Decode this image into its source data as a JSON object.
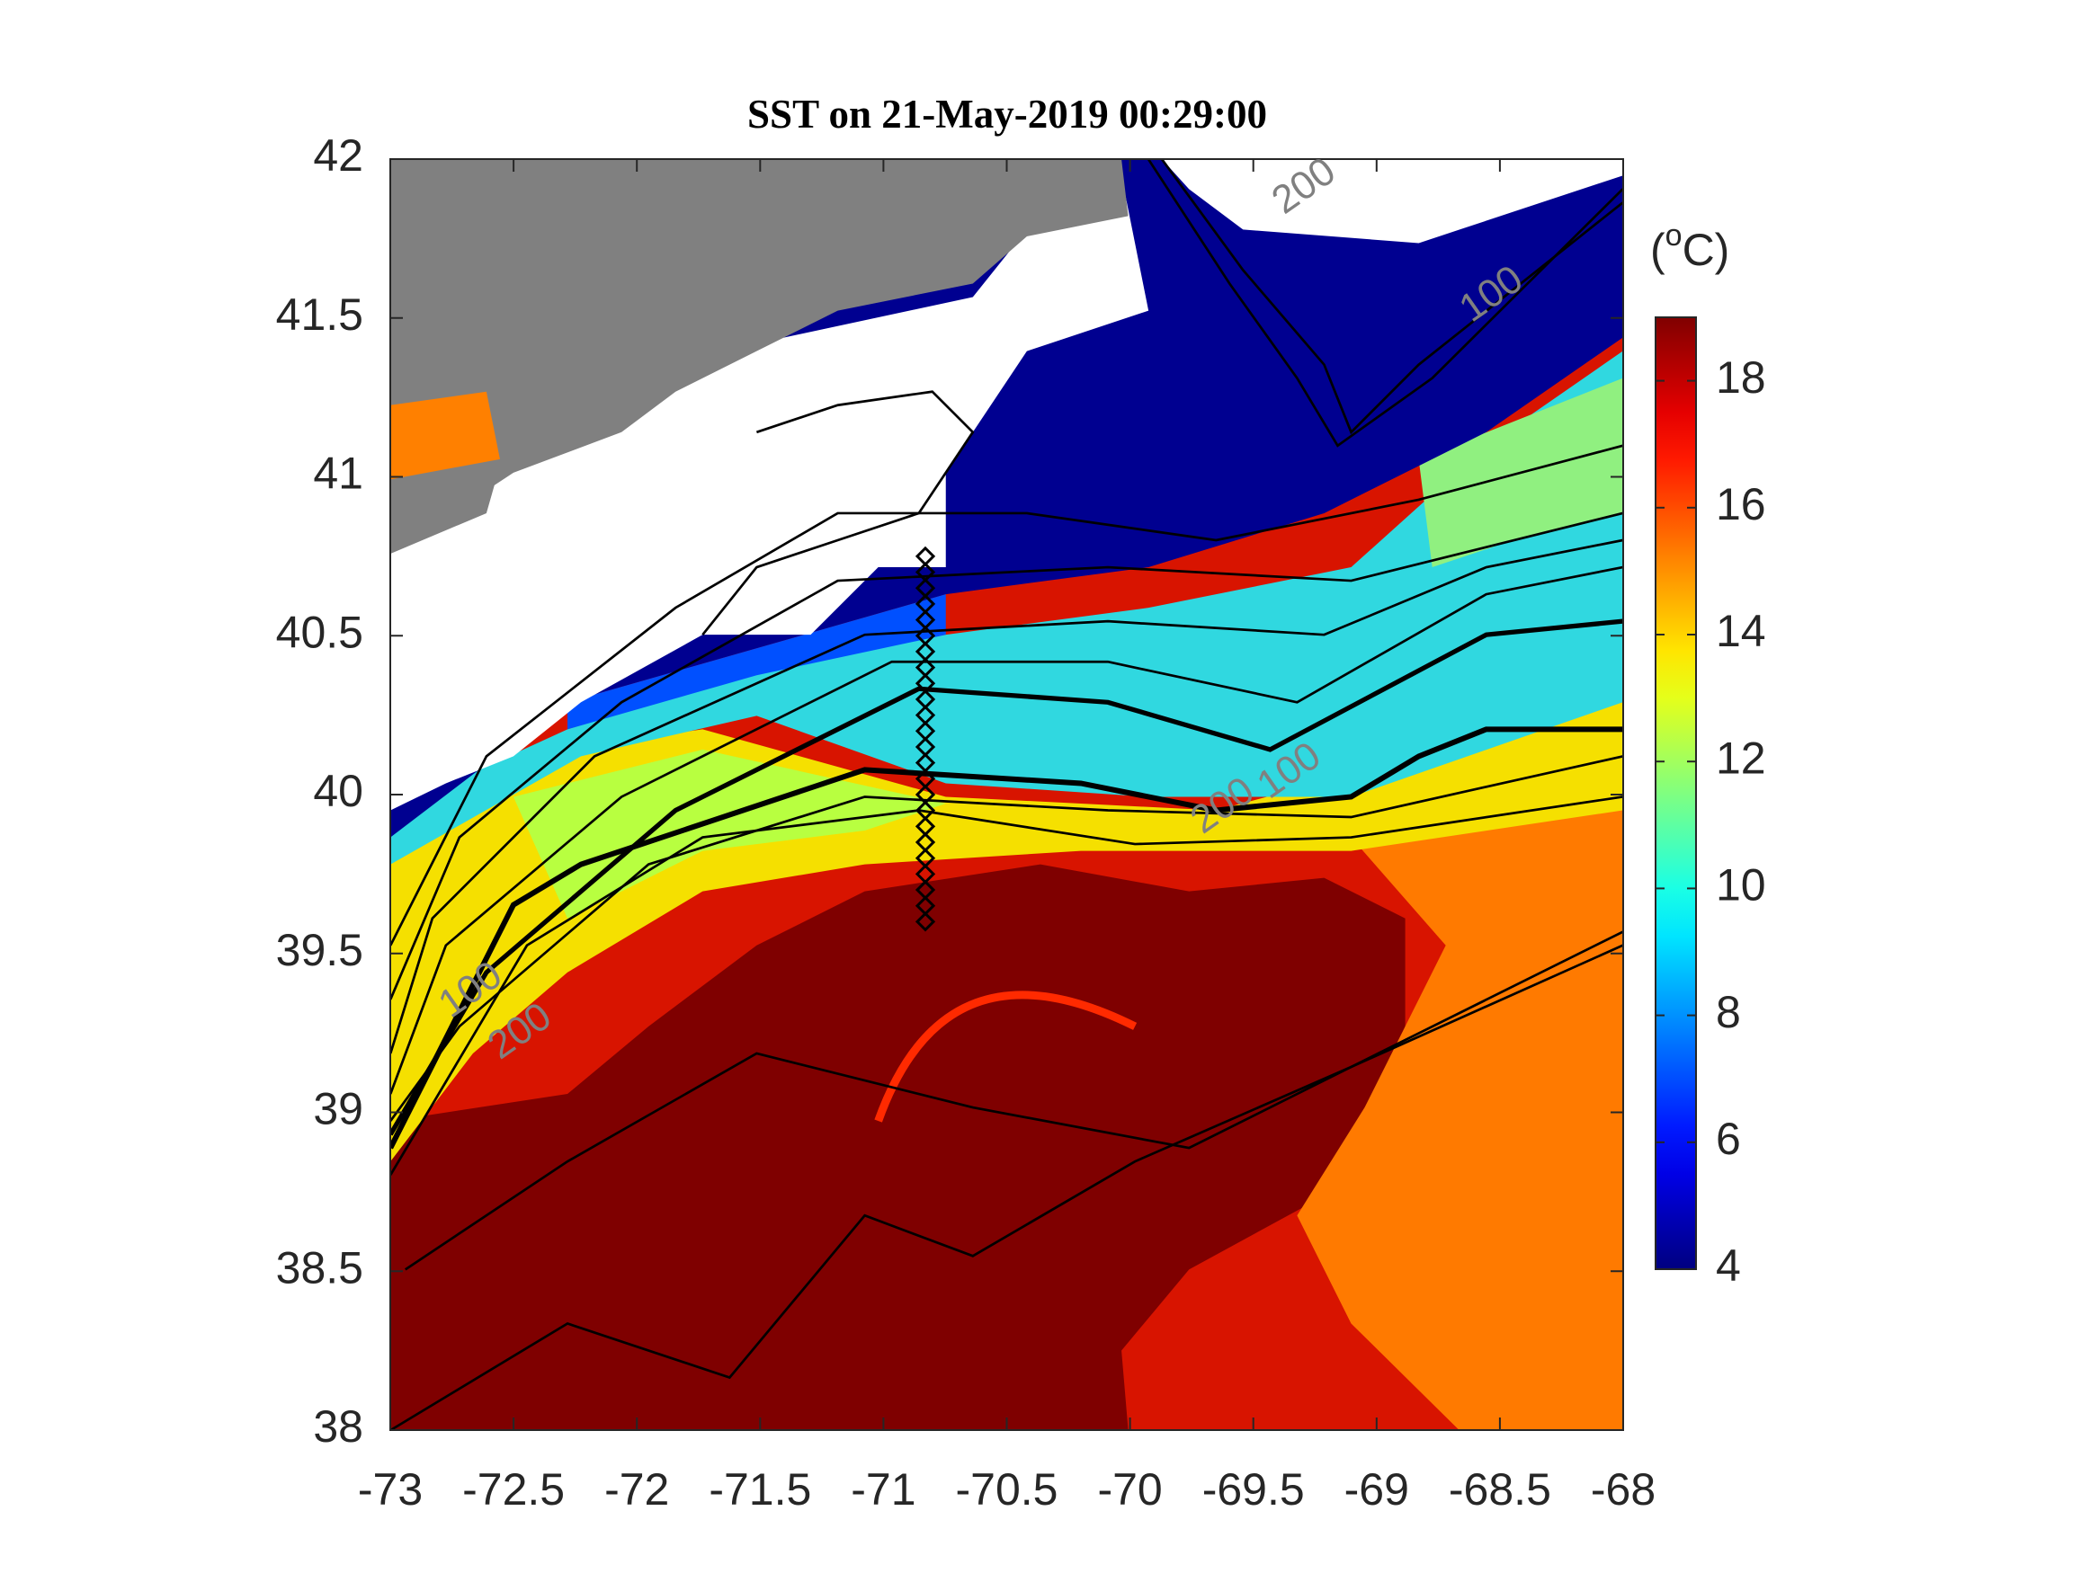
{
  "chart_data": {
    "type": "map",
    "title": "SST on 21-May-2019 00:29:00",
    "xlim": [
      -73,
      -68
    ],
    "xticks": [
      -73,
      -72.5,
      -72,
      -71.5,
      -71,
      -70.5,
      -70,
      -69.5,
      -69,
      -68.5,
      -68
    ],
    "ylim": [
      38,
      42
    ],
    "yticks": [
      38,
      38.5,
      39,
      39.5,
      40,
      40.5,
      41,
      41.5,
      42
    ],
    "colorbar": {
      "label_parts": [
        "(",
        "o",
        "C)"
      ],
      "colormap": "jet",
      "clim": [
        4,
        19
      ],
      "ticks": [
        4,
        6,
        8,
        10,
        12,
        14,
        16,
        18
      ]
    },
    "contour_labels": [
      {
        "text": "200",
        "x": -69.29,
        "y": 41.91
      },
      {
        "text": "100",
        "x": -68.53,
        "y": 41.57
      },
      {
        "text": "200",
        "x": -69.62,
        "y": 39.96
      },
      {
        "text": "100",
        "x": -69.35,
        "y": 40.07
      },
      {
        "text": "100",
        "x": -72.67,
        "y": 39.38
      },
      {
        "text": "200",
        "x": -72.47,
        "y": 39.25
      }
    ],
    "stations": {
      "color": "#000000",
      "x": [
        -70.83,
        -70.83,
        -70.83,
        -70.83,
        -70.83,
        -70.83,
        -70.83,
        -70.83,
        -70.83,
        -70.83,
        -70.83,
        -70.83,
        -70.83,
        -70.83,
        -70.83,
        -70.83,
        -70.83,
        -70.83,
        -70.83,
        -70.83,
        -70.83,
        -70.83,
        -70.83,
        -70.83
      ],
      "y": [
        40.75,
        40.7,
        40.65,
        40.6,
        40.55,
        40.5,
        40.45,
        40.4,
        40.35,
        40.3,
        40.25,
        40.2,
        40.15,
        40.1,
        40.05,
        40.0,
        39.95,
        39.9,
        39.85,
        39.8,
        39.75,
        39.7,
        39.65,
        39.6
      ]
    }
  }
}
